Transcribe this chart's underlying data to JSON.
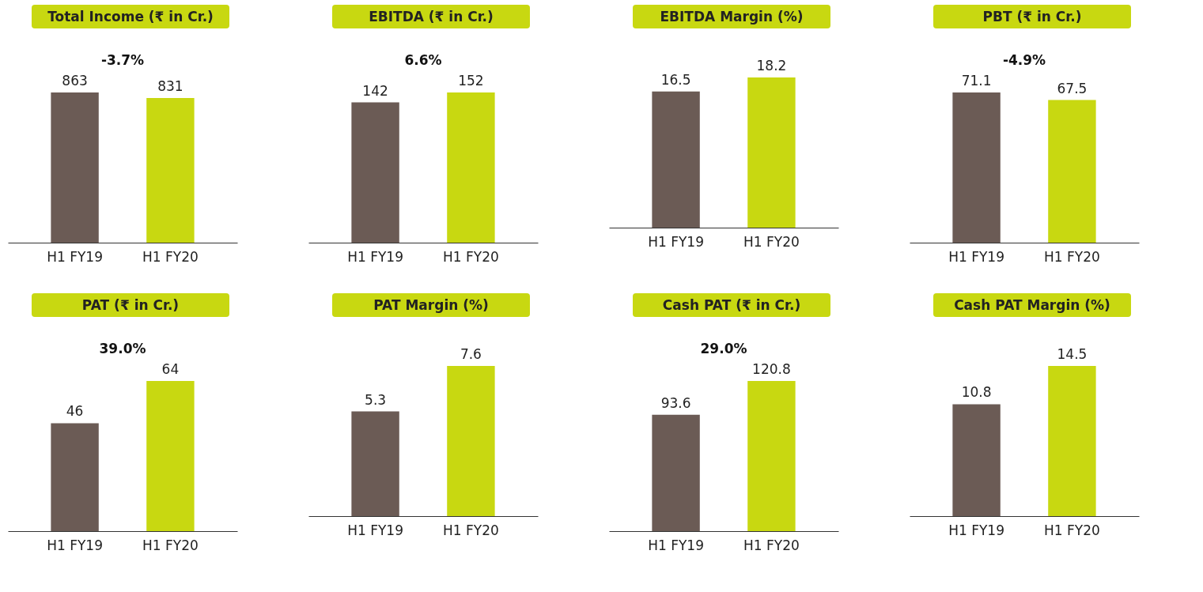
{
  "chart_data": [
    {
      "type": "bar",
      "title": "Total Income (₹ in Cr.)",
      "categories": [
        "H1 FY19",
        "H1 FY20"
      ],
      "values": [
        863,
        831
      ],
      "colors": [
        "#6b5b55",
        "#c8d811"
      ],
      "data_labels": true,
      "annotations": [
        "-3.7%"
      ]
    },
    {
      "type": "bar",
      "title": "EBITDA (₹ in Cr.)",
      "categories": [
        "H1 FY19",
        "H1 FY20"
      ],
      "values": [
        142,
        152
      ],
      "colors": [
        "#6b5b55",
        "#c8d811"
      ],
      "data_labels": true,
      "annotations": [
        "6.6%"
      ]
    },
    {
      "type": "bar",
      "title": "EBITDA Margin (%)",
      "categories": [
        "H1 FY19",
        "H1 FY20"
      ],
      "values": [
        16.5,
        18.2
      ],
      "colors": [
        "#6b5b55",
        "#c8d811"
      ],
      "data_labels": true
    },
    {
      "type": "bar",
      "title": "PBT (₹ in Cr.)",
      "categories": [
        "H1 FY19",
        "H1 FY20"
      ],
      "values": [
        71.1,
        67.5
      ],
      "colors": [
        "#6b5b55",
        "#c8d811"
      ],
      "data_labels": true,
      "annotations": [
        "-4.9%"
      ]
    },
    {
      "type": "bar",
      "title": "PAT (₹ in Cr.)",
      "categories": [
        "H1 FY19",
        "H1 FY20"
      ],
      "values": [
        46,
        64
      ],
      "colors": [
        "#6b5b55",
        "#c8d811"
      ],
      "data_labels": true,
      "annotations": [
        "39.0%"
      ]
    },
    {
      "type": "bar",
      "title": "PAT Margin (%)",
      "categories": [
        "H1 FY19",
        "H1 FY20"
      ],
      "values": [
        5.3,
        7.6
      ],
      "colors": [
        "#6b5b55",
        "#c8d811"
      ],
      "data_labels": true
    },
    {
      "type": "bar",
      "title": "Cash PAT (₹ in Cr.)",
      "categories": [
        "H1 FY19",
        "H1 FY20"
      ],
      "values": [
        93.6,
        120.8
      ],
      "colors": [
        "#6b5b55",
        "#c8d811"
      ],
      "data_labels": true,
      "annotations": [
        "29.0%"
      ]
    },
    {
      "type": "bar",
      "title": "Cash PAT Margin (%)",
      "categories": [
        "H1 FY19",
        "H1 FY20"
      ],
      "values": [
        10.8,
        14.5
      ],
      "colors": [
        "#6b5b55",
        "#c8d811"
      ],
      "data_labels": true
    }
  ]
}
